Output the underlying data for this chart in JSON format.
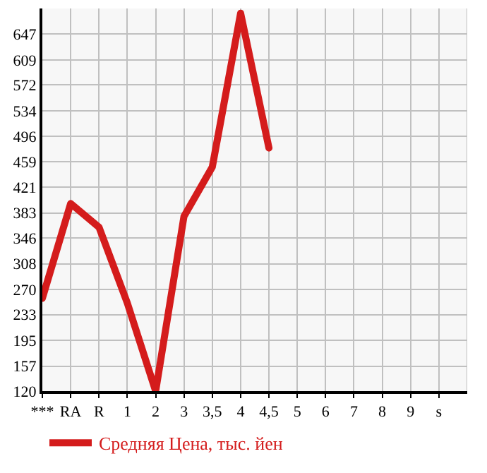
{
  "chart_data": {
    "type": "line",
    "categories": [
      "***",
      "RA",
      "R",
      "1",
      "2",
      "3",
      "3,5",
      "4",
      "4,5",
      "5",
      "6",
      "7",
      "8",
      "9",
      "s"
    ],
    "series": [
      {
        "name": "Средняя Цена, тыс. йен",
        "color": "#d41c1c",
        "values": [
          257,
          397,
          362,
          250,
          120,
          378,
          451,
          678,
          479,
          null,
          null,
          null,
          null,
          null,
          null
        ]
      }
    ],
    "ylim": [
      120,
      685
    ],
    "yticks": [
      120,
      157,
      195,
      233,
      270,
      308,
      346,
      383,
      421,
      459,
      496,
      534,
      572,
      609,
      647
    ],
    "grid": true,
    "legend": "bottom",
    "marker": "none",
    "line_style": "solid"
  }
}
